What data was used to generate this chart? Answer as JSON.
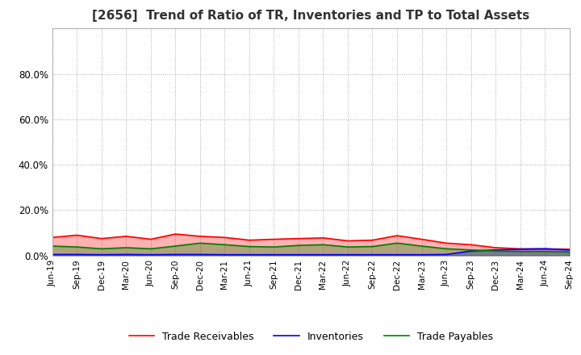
{
  "title": "[2656]  Trend of Ratio of TR, Inventories and TP to Total Assets",
  "x_labels": [
    "Jun-19",
    "Sep-19",
    "Dec-19",
    "Mar-20",
    "Jun-20",
    "Sep-20",
    "Dec-20",
    "Mar-21",
    "Jun-21",
    "Sep-21",
    "Dec-21",
    "Mar-22",
    "Jun-22",
    "Sep-22",
    "Dec-22",
    "Mar-23",
    "Jun-23",
    "Sep-23",
    "Dec-23",
    "Mar-24",
    "Jun-24",
    "Sep-24"
  ],
  "trade_receivables": [
    0.08,
    0.09,
    0.075,
    0.085,
    0.072,
    0.095,
    0.085,
    0.08,
    0.068,
    0.072,
    0.075,
    0.078,
    0.065,
    0.068,
    0.088,
    0.072,
    0.055,
    0.048,
    0.035,
    0.03,
    0.03,
    0.028
  ],
  "inventories": [
    0.005,
    0.005,
    0.004,
    0.005,
    0.004,
    0.005,
    0.005,
    0.004,
    0.004,
    0.004,
    0.004,
    0.004,
    0.004,
    0.004,
    0.004,
    0.004,
    0.005,
    0.02,
    0.025,
    0.028,
    0.03,
    0.025
  ],
  "trade_payables": [
    0.042,
    0.038,
    0.03,
    0.035,
    0.03,
    0.042,
    0.055,
    0.048,
    0.04,
    0.038,
    0.045,
    0.048,
    0.038,
    0.04,
    0.055,
    0.042,
    0.03,
    0.025,
    0.02,
    0.018,
    0.018,
    0.016
  ],
  "tr_color": "#ff0000",
  "inv_color": "#0000ff",
  "tp_color": "#008000",
  "ylim": [
    0.0,
    1.0
  ],
  "yticks": [
    0.0,
    0.2,
    0.4,
    0.6,
    0.8
  ],
  "background_color": "#ffffff",
  "grid_color": "#aaaaaa",
  "title_fontsize": 11,
  "legend_labels": [
    "Trade Receivables",
    "Inventories",
    "Trade Payables"
  ]
}
